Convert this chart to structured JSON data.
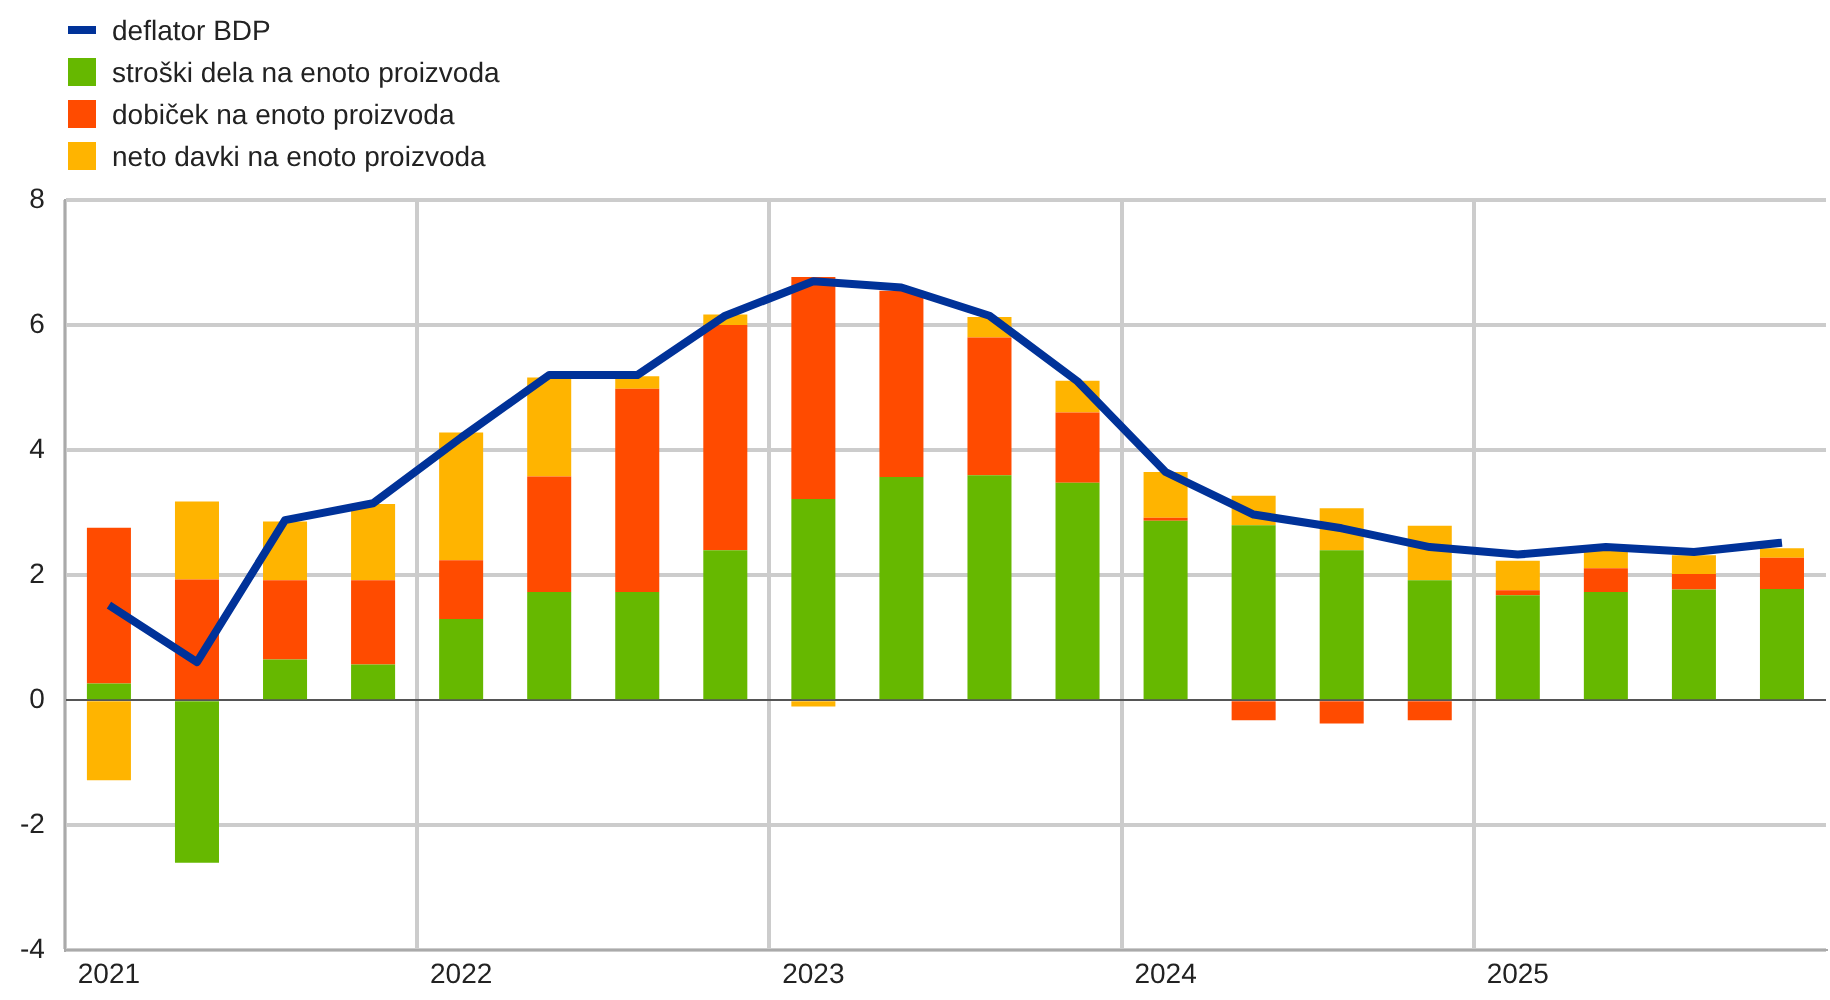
{
  "chart_data": {
    "type": "bar",
    "stacked": true,
    "categories": [
      "2021",
      null,
      null,
      null,
      "2022",
      null,
      null,
      null,
      "2023",
      null,
      null,
      null,
      "2024",
      null,
      null,
      null,
      "2025",
      null,
      null,
      null
    ],
    "series": [
      {
        "name": "deflator BDP",
        "type": "line",
        "color": "#003299",
        "values": [
          1.52,
          0.61,
          2.88,
          3.15,
          4.2,
          5.2,
          5.2,
          6.15,
          6.7,
          6.6,
          6.15,
          5.1,
          3.65,
          2.97,
          2.75,
          2.45,
          2.33,
          2.45,
          2.37,
          2.52
        ]
      },
      {
        "name": "stroški dela na enoto proizvoda",
        "color": "#66b800",
        "values": [
          0.27,
          -2.6,
          0.65,
          0.57,
          1.3,
          1.73,
          1.73,
          2.4,
          3.22,
          3.57,
          3.6,
          3.48,
          2.87,
          2.8,
          2.4,
          1.92,
          1.68,
          1.73,
          1.77,
          1.78
        ]
      },
      {
        "name": "dobiček na enoto proizvoda",
        "color": "#ff4b00",
        "values": [
          2.49,
          1.93,
          1.27,
          1.35,
          0.94,
          1.85,
          3.25,
          3.6,
          3.55,
          2.98,
          2.2,
          1.12,
          0.05,
          -0.32,
          -0.37,
          -0.32,
          0.08,
          0.38,
          0.25,
          0.5
        ]
      },
      {
        "name": "neto davki na enoto proizvoda",
        "color": "#ffb400",
        "values": [
          -1.28,
          1.25,
          0.94,
          1.22,
          2.04,
          1.58,
          0.2,
          0.17,
          -0.1,
          null,
          0.33,
          0.51,
          0.73,
          0.47,
          0.67,
          0.87,
          0.47,
          0.3,
          0.3,
          0.15
        ]
      }
    ],
    "ylim": [
      -4,
      8
    ],
    "yticks": [
      -4,
      -2,
      0,
      2,
      4,
      6,
      8
    ],
    "grid": true,
    "legend": "top left"
  }
}
